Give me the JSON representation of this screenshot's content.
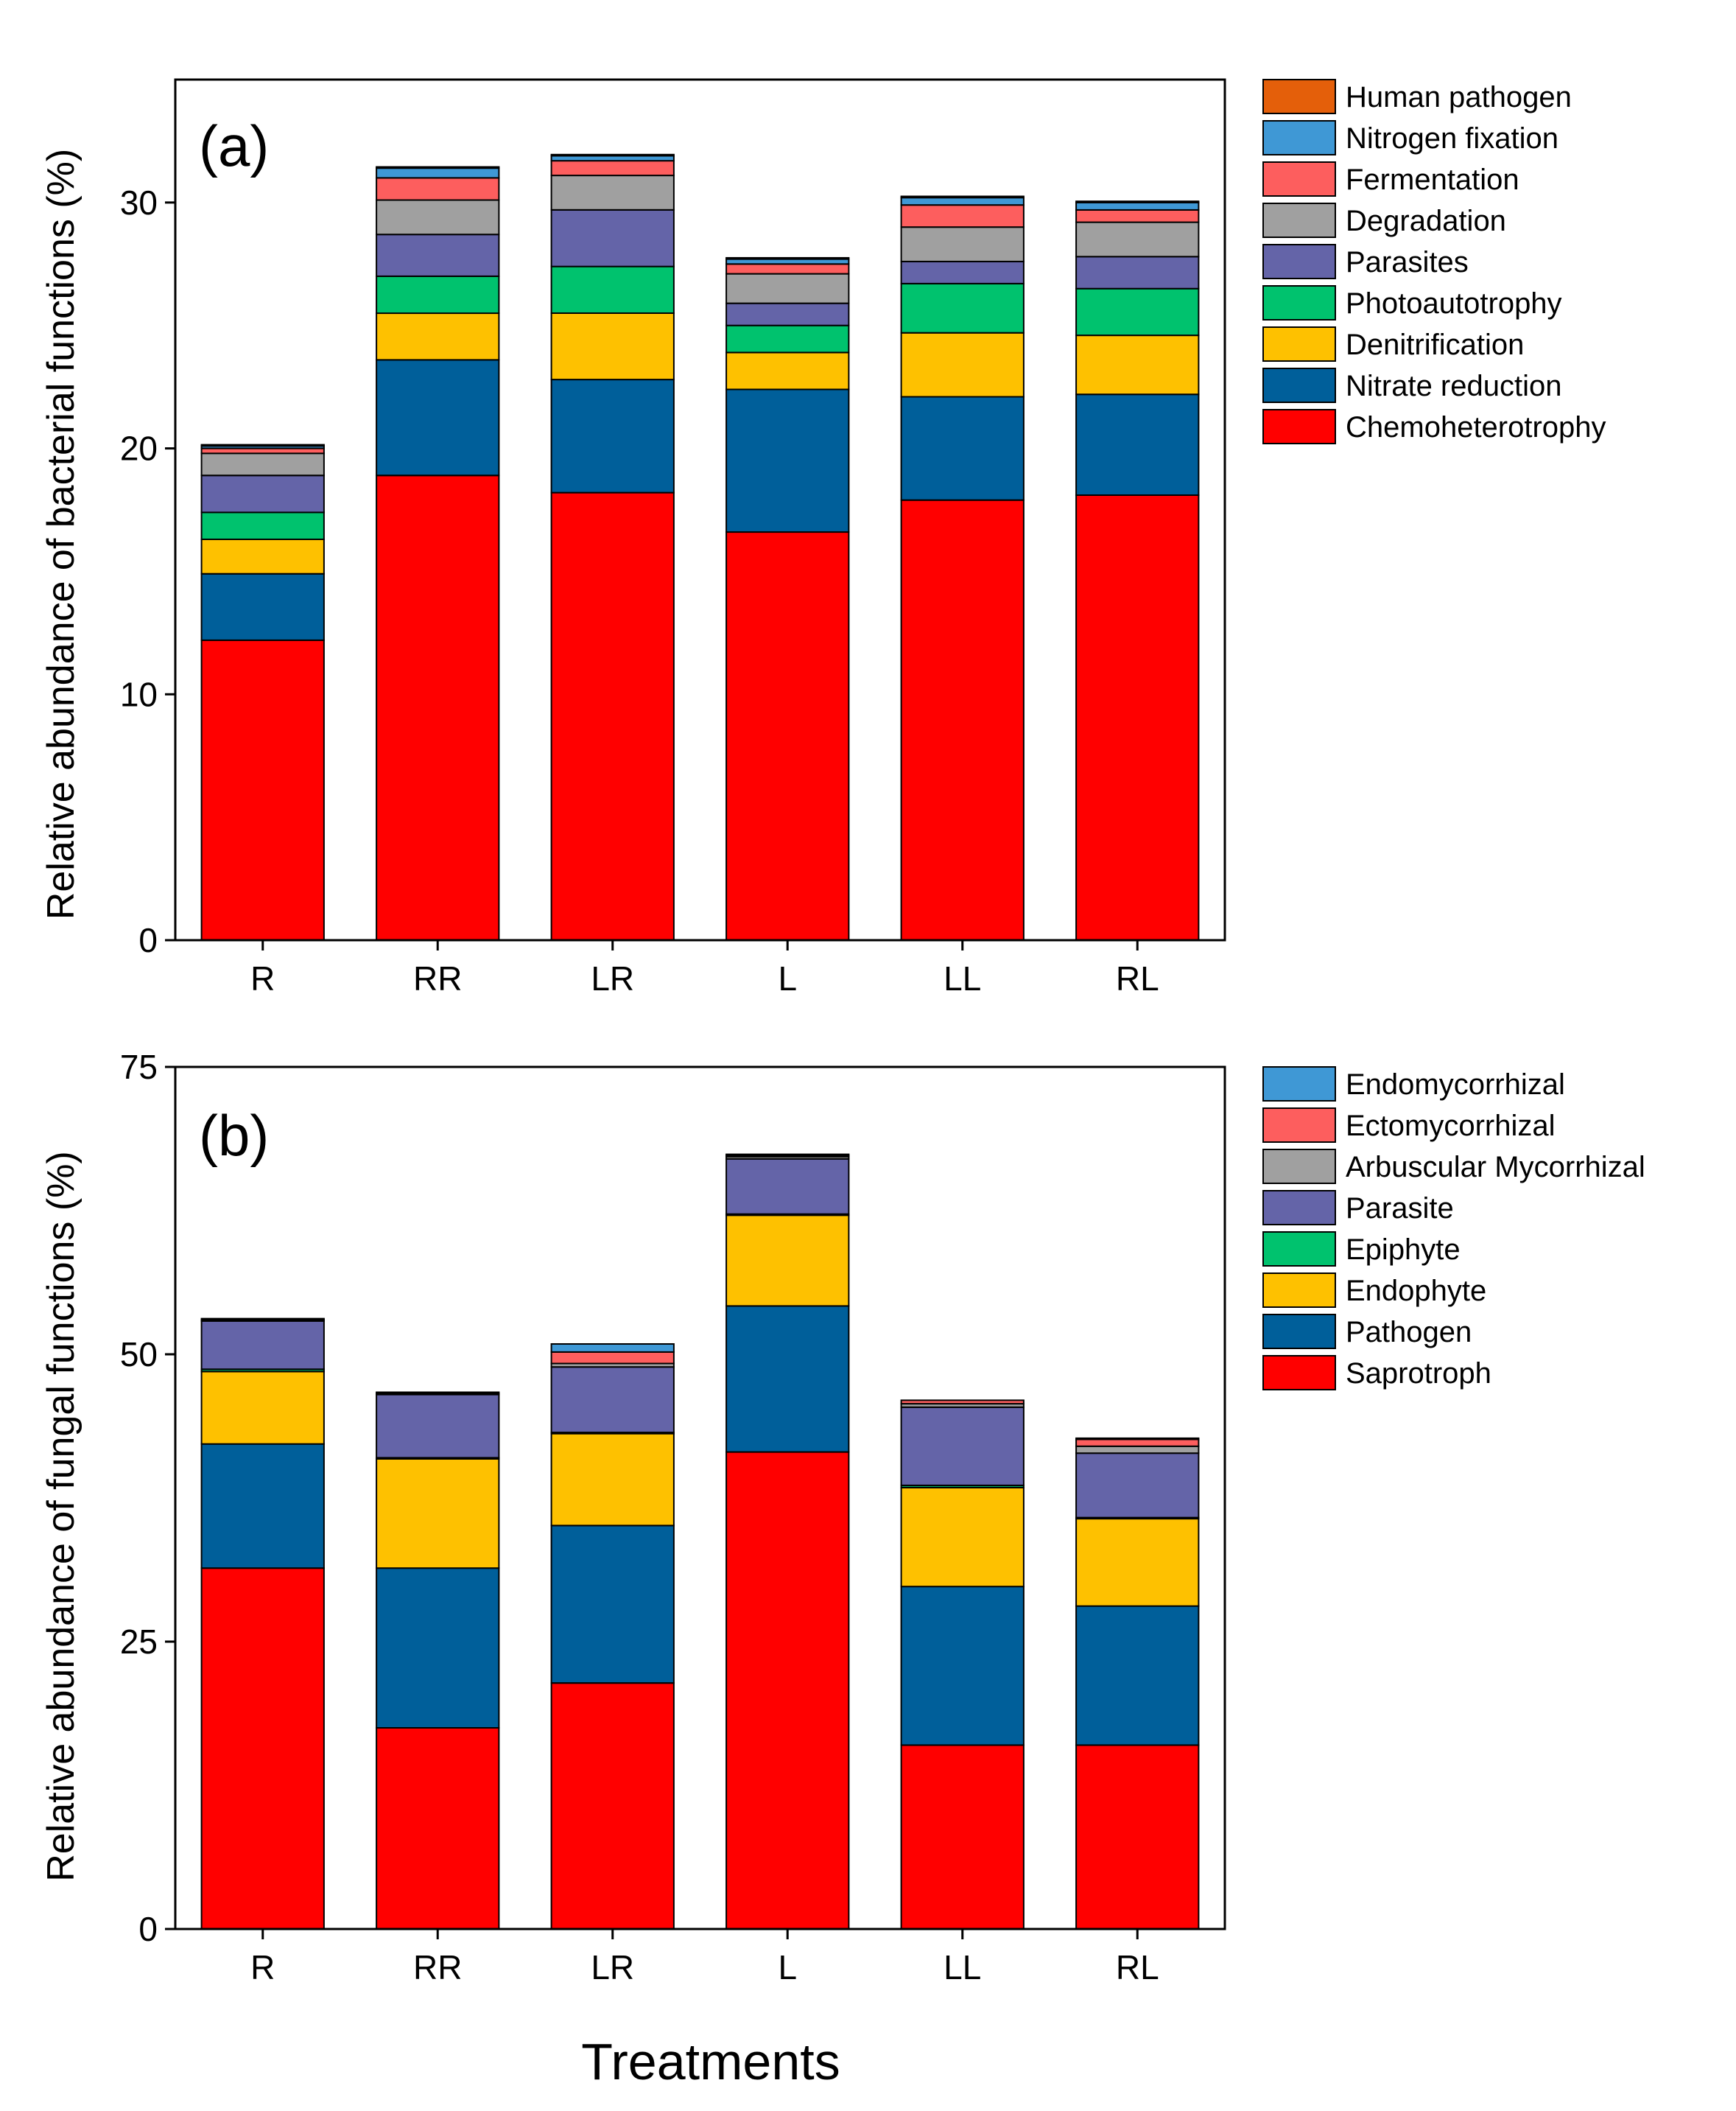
{
  "xlabel": "Treatments",
  "chart_data": [
    {
      "type": "bar",
      "stacked": true,
      "panel_label": "(a)",
      "ylabel": "Relative abundance of bacterial functions (%)",
      "ylim": [
        0,
        35
      ],
      "yticks": [
        0,
        10,
        20,
        30
      ],
      "categories": [
        "R",
        "RR",
        "LR",
        "L",
        "LL",
        "RL"
      ],
      "series": [
        {
          "name": "Chemoheterotrophy",
          "color": "#ff0000",
          "values": [
            12.2,
            18.9,
            18.2,
            16.6,
            17.9,
            18.1
          ]
        },
        {
          "name": "Nitrate reduction",
          "color": "#005f9a",
          "values": [
            2.7,
            4.7,
            4.6,
            5.8,
            4.2,
            4.1
          ]
        },
        {
          "name": "Denitrification",
          "color": "#fec100",
          "values": [
            1.4,
            1.9,
            2.7,
            1.5,
            2.6,
            2.4
          ]
        },
        {
          "name": "Photoautotrophy",
          "color": "#00c26e",
          "values": [
            1.1,
            1.5,
            1.9,
            1.1,
            2.0,
            1.9
          ]
        },
        {
          "name": "Parasites",
          "color": "#6464a8",
          "values": [
            1.5,
            1.7,
            2.3,
            0.9,
            0.9,
            1.3
          ]
        },
        {
          "name": "Degradation",
          "color": "#a0a0a0",
          "values": [
            0.9,
            1.4,
            1.4,
            1.2,
            1.4,
            1.4
          ]
        },
        {
          "name": "Fermentation",
          "color": "#fd5e5e",
          "values": [
            0.2,
            0.9,
            0.6,
            0.4,
            0.9,
            0.5
          ]
        },
        {
          "name": "Nitrogen fixation",
          "color": "#3f98d5",
          "values": [
            0.1,
            0.4,
            0.2,
            0.2,
            0.3,
            0.3
          ]
        },
        {
          "name": "Human pathogen",
          "color": "#e45f0a",
          "values": [
            0.05,
            0.05,
            0.05,
            0.05,
            0.05,
            0.05
          ]
        }
      ]
    },
    {
      "type": "bar",
      "stacked": true,
      "panel_label": "(b)",
      "ylabel": "Relative abundance of fungal functions (%)",
      "ylim": [
        0,
        75
      ],
      "yticks": [
        0,
        25,
        50,
        75
      ],
      "categories": [
        "R",
        "RR",
        "LR",
        "L",
        "LL",
        "RL"
      ],
      "series": [
        {
          "name": "Saprotroph",
          "color": "#ff0000",
          "values": [
            31.4,
            17.5,
            21.4,
            41.5,
            16.0,
            16.0
          ]
        },
        {
          "name": "Pathogen",
          "color": "#005f9a",
          "values": [
            10.8,
            13.9,
            13.7,
            12.7,
            13.8,
            12.1
          ]
        },
        {
          "name": "Endophyte",
          "color": "#fec100",
          "values": [
            6.3,
            9.5,
            8.0,
            7.9,
            8.6,
            7.6
          ]
        },
        {
          "name": "Epiphyte",
          "color": "#00c26e",
          "values": [
            0.2,
            0.1,
            0.1,
            0.1,
            0.2,
            0.1
          ]
        },
        {
          "name": "Parasite",
          "color": "#6464a8",
          "values": [
            4.2,
            5.5,
            5.7,
            4.8,
            6.8,
            5.6
          ]
        },
        {
          "name": "Arbuscular Mycorrhizal",
          "color": "#a0a0a0",
          "values": [
            0.1,
            0.1,
            0.3,
            0.2,
            0.3,
            0.6
          ]
        },
        {
          "name": "Ectomycorrhizal",
          "color": "#fd5e5e",
          "values": [
            0.1,
            0.1,
            1.0,
            0.1,
            0.3,
            0.6
          ]
        },
        {
          "name": "Endomycorrhizal",
          "color": "#3f98d5",
          "values": [
            0.0,
            0.0,
            0.7,
            0.1,
            0.0,
            0.1
          ]
        }
      ]
    }
  ]
}
